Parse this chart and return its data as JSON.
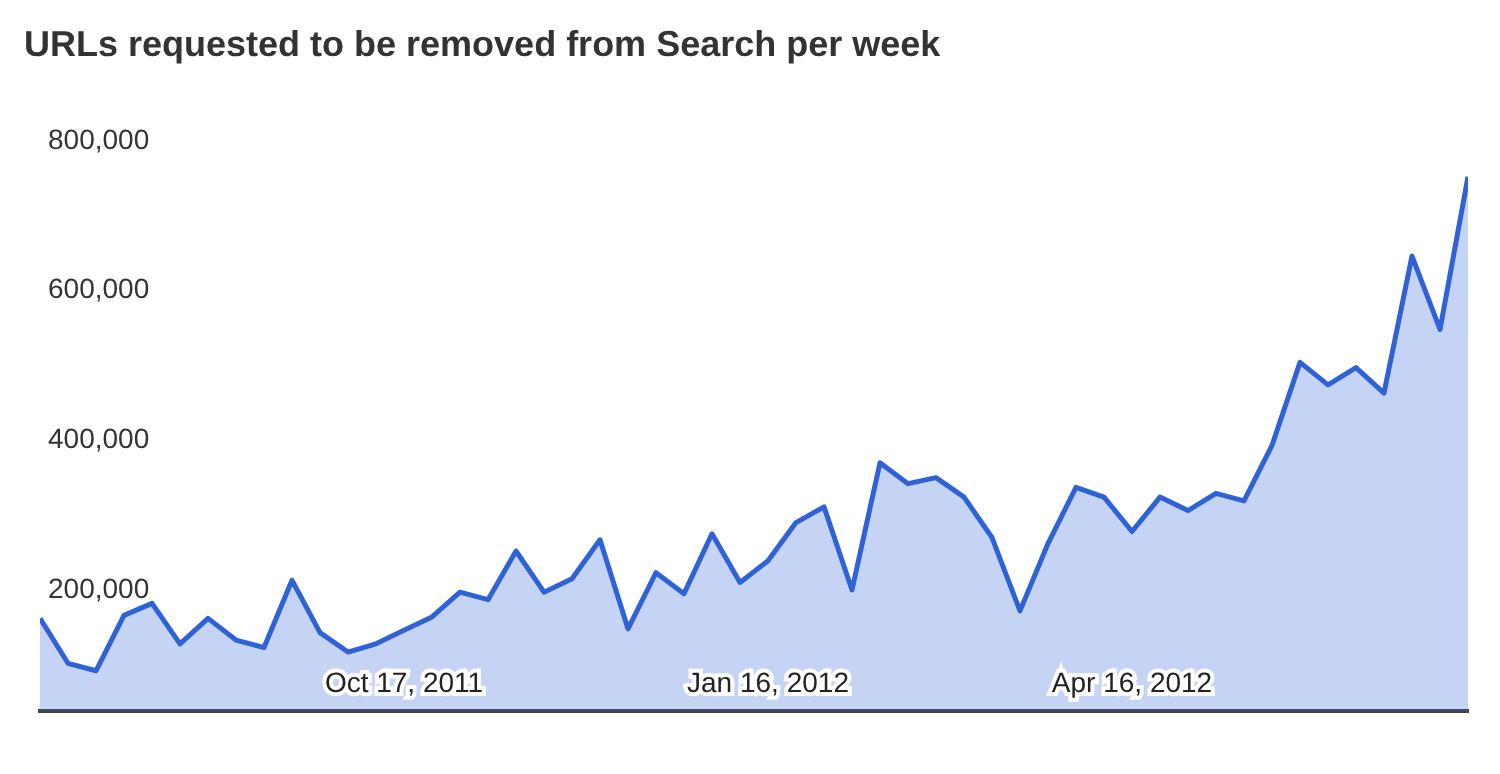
{
  "chart_data": {
    "type": "area",
    "title": "URLs requested to be removed from Search per week",
    "x": [
      "2011-07-18",
      "2011-07-25",
      "2011-08-01",
      "2011-08-08",
      "2011-08-15",
      "2011-08-22",
      "2011-08-29",
      "2011-09-05",
      "2011-09-12",
      "2011-09-19",
      "2011-09-26",
      "2011-10-03",
      "2011-10-10",
      "2011-10-17",
      "2011-10-24",
      "2011-10-31",
      "2011-11-07",
      "2011-11-14",
      "2011-11-21",
      "2011-11-28",
      "2011-12-05",
      "2011-12-12",
      "2011-12-19",
      "2011-12-26",
      "2012-01-02",
      "2012-01-09",
      "2012-01-16",
      "2012-01-23",
      "2012-01-30",
      "2012-02-06",
      "2012-02-13",
      "2012-02-20",
      "2012-02-27",
      "2012-03-05",
      "2012-03-12",
      "2012-03-19",
      "2012-03-26",
      "2012-04-02",
      "2012-04-09",
      "2012-04-16",
      "2012-04-23",
      "2012-04-30",
      "2012-05-07",
      "2012-05-14",
      "2012-05-21",
      "2012-05-28",
      "2012-06-04",
      "2012-06-11",
      "2012-06-18",
      "2012-06-25",
      "2012-07-02",
      "2012-07-09"
    ],
    "series": [
      {
        "color": "#2f62d6",
        "values": [
          162000,
          102000,
          92000,
          166000,
          182000,
          128000,
          162000,
          133000,
          123000,
          213000,
          143000,
          117000,
          128000,
          146000,
          164000,
          197000,
          187000,
          252000,
          197000,
          215000,
          267000,
          148000,
          223000,
          195000,
          275000,
          210000,
          239000,
          290000,
          311000,
          200000,
          370000,
          342000,
          350000,
          324000,
          270000,
          172000,
          262000,
          337000,
          324000,
          278000,
          324000,
          306000,
          329000,
          319000,
          393000,
          504000,
          474000,
          497000,
          463000,
          646000,
          548000,
          752000
        ]
      }
    ],
    "xlim": [
      "2011-07-18",
      "2012-07-09"
    ],
    "xticks": [
      {
        "value": "2011-10-17",
        "label": "Oct 17, 2011"
      },
      {
        "value": "2012-01-16",
        "label": "Jan 16, 2012"
      },
      {
        "value": "2012-04-16",
        "label": "Apr 16, 2012"
      }
    ],
    "ylim": [
      38000,
      800000
    ],
    "yticks": [
      {
        "value": 200000,
        "label": "200,000"
      },
      {
        "value": 400000,
        "label": "400,000"
      },
      {
        "value": 600000,
        "label": "600,000"
      },
      {
        "value": 800000,
        "label": "800,000"
      }
    ],
    "grid": false,
    "legend": false,
    "marker": "none",
    "line_style": "solid"
  }
}
